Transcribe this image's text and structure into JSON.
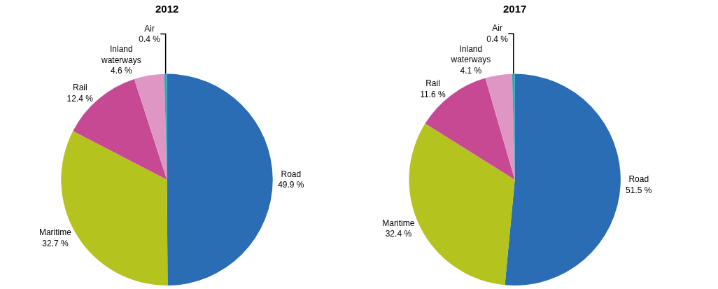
{
  "chart_data": [
    {
      "type": "pie",
      "title": "2012",
      "categories": [
        "Road",
        "Maritime",
        "Rail",
        "Inland waterways",
        "Air"
      ],
      "values": [
        49.9,
        32.7,
        12.4,
        4.6,
        0.4
      ],
      "value_labels": [
        "49.9 %",
        "32.7 %",
        "12.4 %",
        "4.6 %",
        "0.4 %"
      ],
      "colors": [
        "#2a6db5",
        "#b5c31f",
        "#c74994",
        "#e096c5",
        "#2aa9b5"
      ],
      "legend": false
    },
    {
      "type": "pie",
      "title": "2017",
      "categories": [
        "Road",
        "Maritime",
        "Rail",
        "Inland waterways",
        "Air"
      ],
      "values": [
        51.5,
        32.4,
        11.6,
        4.1,
        0.4
      ],
      "value_labels": [
        "51.5 %",
        "32.4 %",
        "11.6 %",
        "4.1 %",
        "0.4 %"
      ],
      "colors": [
        "#2a6db5",
        "#b5c31f",
        "#c74994",
        "#e096c5",
        "#2aa9b5"
      ],
      "legend": false
    }
  ]
}
